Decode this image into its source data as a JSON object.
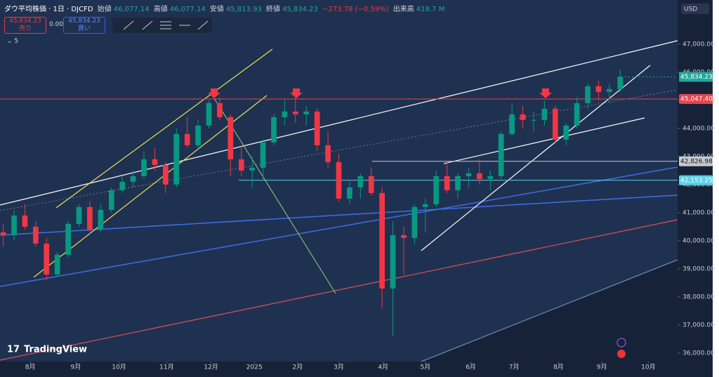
{
  "header": {
    "symbol": "ダウ平均株価 · 1日 · DJCFD",
    "open_label": "始値",
    "open": "46,077.14",
    "high_label": "高値",
    "high": "46,077.14",
    "low_label": "安値",
    "low": "45,813.93",
    "close_label": "終値",
    "close": "45,834.23",
    "change": "−273.78 (−0.59%)",
    "volume_label": "出来高",
    "volume": "418.7 M",
    "sell_price": "45,834.23",
    "sell_label": "売り",
    "spread": "0.00",
    "buy_price": "45,834.23",
    "buy_label": "買い",
    "indicators": "5",
    "brand": "TradingView"
  },
  "chart_data": {
    "type": "candlestick",
    "currency": "USD",
    "x": [
      0,
      1,
      2,
      3,
      4,
      5,
      6,
      7,
      8,
      9,
      10,
      11,
      12,
      13,
      14,
      15,
      16,
      17,
      18,
      19,
      20,
      21,
      22,
      23,
      24,
      25,
      26,
      27,
      28,
      29,
      30,
      31,
      32,
      33,
      34,
      35,
      36,
      37,
      38,
      39,
      40,
      41,
      42,
      43,
      44,
      45,
      46,
      47,
      48,
      49,
      50,
      51,
      52,
      53,
      54,
      55,
      56,
      57
    ],
    "open": [
      40300,
      40200,
      40900,
      40500,
      39900,
      38800,
      39500,
      40600,
      41200,
      40400,
      41100,
      41800,
      42100,
      42300,
      42900,
      42700,
      42000,
      43800,
      43400,
      44100,
      44900,
      44400,
      42900,
      42500,
      42600,
      43500,
      44400,
      44600,
      44500,
      44600,
      43400,
      42800,
      41500,
      41900,
      42300,
      41700,
      38300,
      40200,
      40100,
      41200,
      41300,
      42300,
      41800,
      42300,
      42400,
      42200,
      42300,
      43800,
      44500,
      44300,
      44300,
      44700,
      43600,
      44100,
      44900,
      45500,
      45300,
      45400
    ],
    "high": [
      40600,
      41100,
      41300,
      40700,
      40100,
      39600,
      40700,
      41300,
      41400,
      41300,
      41900,
      42300,
      42500,
      43200,
      43300,
      42800,
      44000,
      44400,
      44300,
      45000,
      45100,
      44500,
      43400,
      43000,
      43600,
      44500,
      45000,
      45100,
      44800,
      44700,
      43900,
      43100,
      42100,
      42400,
      42600,
      41900,
      40700,
      40500,
      41300,
      41500,
      42500,
      42800,
      42400,
      42600,
      42900,
      42500,
      43900,
      44900,
      44800,
      44600,
      45000,
      44800,
      44200,
      45100,
      45600,
      45700,
      45600,
      46100
    ],
    "low": [
      39800,
      40000,
      40400,
      39800,
      38600,
      38700,
      39400,
      40500,
      40300,
      40300,
      41000,
      41700,
      41900,
      42200,
      42500,
      41700,
      41900,
      43300,
      43200,
      44000,
      44300,
      42300,
      42300,
      41900,
      42200,
      43400,
      44100,
      44200,
      44100,
      43200,
      42600,
      41400,
      41300,
      41500,
      41600,
      37600,
      36600,
      38800,
      39900,
      40300,
      41200,
      41700,
      41500,
      41900,
      42000,
      41800,
      42200,
      43700,
      44000,
      43900,
      44100,
      43500,
      43400,
      44000,
      44700,
      45000,
      44900,
      45300
    ],
    "close": [
      40200,
      40900,
      40500,
      39900,
      38800,
      39500,
      40600,
      41200,
      40400,
      41100,
      41800,
      42100,
      42300,
      42900,
      42700,
      42000,
      43800,
      43400,
      44100,
      44900,
      44400,
      42900,
      42500,
      42600,
      43500,
      44400,
      44600,
      44500,
      44600,
      43400,
      42800,
      41500,
      41900,
      42300,
      41700,
      38300,
      40200,
      40100,
      41200,
      41300,
      42300,
      41800,
      42300,
      42400,
      42200,
      42300,
      43800,
      44500,
      44300,
      44300,
      44700,
      43600,
      44100,
      44900,
      45500,
      45300,
      45400,
      45834.23
    ],
    "up_color": "#089981",
    "down_color": "#f23645",
    "xlim": [
      -0.3,
      62.3
    ],
    "xticks": [
      {
        "value": 2.5,
        "label": "8月"
      },
      {
        "value": 6.7,
        "label": "9月"
      },
      {
        "value": 10.7,
        "label": "10月"
      },
      {
        "value": 15.1,
        "label": "11月"
      },
      {
        "value": 19.2,
        "label": "12月"
      },
      {
        "value": 23.2,
        "label": "2025"
      },
      {
        "value": 27.2,
        "label": "2月"
      },
      {
        "value": 31.0,
        "label": "3月"
      },
      {
        "value": 35.1,
        "label": "4月"
      },
      {
        "value": 39.0,
        "label": "5月"
      },
      {
        "value": 43.2,
        "label": "6月"
      },
      {
        "value": 47.2,
        "label": "7月"
      },
      {
        "value": 51.3,
        "label": "8月"
      },
      {
        "value": 55.3,
        "label": "9月"
      },
      {
        "value": 59.6,
        "label": "10月"
      }
    ],
    "ylim": [
      35700,
      48570
    ],
    "yticks": [
      {
        "value": 36000,
        "label": "36,000.00"
      },
      {
        "value": 37000,
        "label": "37,000.00"
      },
      {
        "value": 38000,
        "label": "38,000.00"
      },
      {
        "value": 39000,
        "label": "39,000.00"
      },
      {
        "value": 40000,
        "label": "40,000.00"
      },
      {
        "value": 41000,
        "label": "41,000.00"
      },
      {
        "value": 42000,
        "label": "42,000.00"
      },
      {
        "value": 43000,
        "label": "43,000.00"
      },
      {
        "value": 44000,
        "label": "44,000.00"
      },
      {
        "value": 45000,
        "label": "45,000.00"
      },
      {
        "value": 46000,
        "label": "46,000.00"
      },
      {
        "value": 47000,
        "label": "47,000.00"
      }
    ],
    "price_lines": [
      {
        "value": 45834.23,
        "label": "45,834.23",
        "color": "#26a69a"
      },
      {
        "value": 45047.4,
        "label": "45,047.40",
        "color": "#e5464f"
      },
      {
        "value": 42826.98,
        "label": "42,826.98",
        "color": "#c7c9cf"
      },
      {
        "value": 42153.25,
        "label": "42,153.25",
        "color": "#5fd0e6"
      }
    ]
  }
}
